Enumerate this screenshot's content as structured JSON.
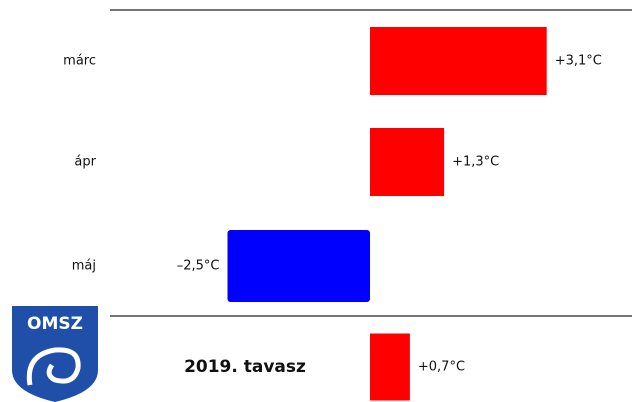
{
  "chart_data": {
    "type": "bar",
    "orientation": "horizontal",
    "categories": [
      "márc",
      "ápr",
      "máj",
      "2019. tavasz"
    ],
    "values": [
      3.1,
      1.3,
      -2.5,
      0.7
    ],
    "value_labels": [
      "+3,1°C",
      "+1,3°C",
      "–2,5°C",
      "+0,7°C"
    ],
    "colors": [
      "#ff0000",
      "#ff0000",
      "#0000ff",
      "#ff0000"
    ],
    "logo": "OMSZ"
  }
}
